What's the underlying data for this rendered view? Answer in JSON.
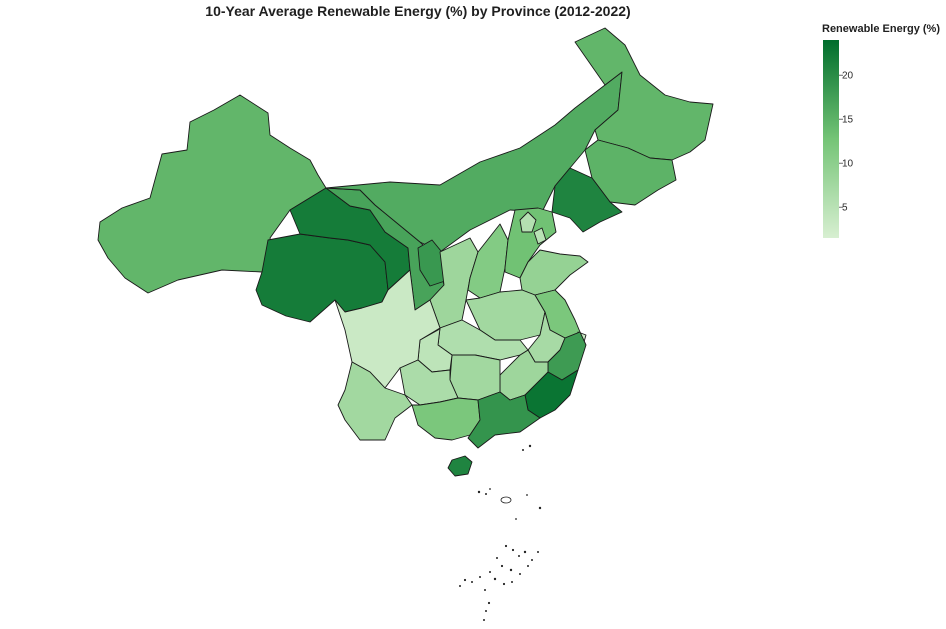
{
  "title": "10-Year Average Renewable Energy (%) by Province (2012-2022)",
  "legend": {
    "title": "Renewable Energy (%)",
    "min": 1.5,
    "max": 24,
    "ticks": [
      5,
      10,
      15,
      20
    ],
    "color_low": "#d7efd1",
    "color_high": "#006d2c"
  },
  "map_data": {
    "type": "choropleth",
    "regions": [
      {
        "name": "Xinjiang",
        "value": 14.5
      },
      {
        "name": "Tibet",
        "value": 22
      },
      {
        "name": "Qinghai",
        "value": 22
      },
      {
        "name": "Gansu",
        "value": 17
      },
      {
        "name": "Inner Mongolia",
        "value": 16
      },
      {
        "name": "Heilongjiang",
        "value": 14.5
      },
      {
        "name": "Jilin",
        "value": 15
      },
      {
        "name": "Liaoning",
        "value": 21
      },
      {
        "name": "Ningxia",
        "value": 18.5
      },
      {
        "name": "Shaanxi",
        "value": 8
      },
      {
        "name": "Shanxi",
        "value": 11
      },
      {
        "name": "Hebei",
        "value": 13
      },
      {
        "name": "Beijing",
        "value": 5.5
      },
      {
        "name": "Tianjin",
        "value": 5
      },
      {
        "name": "Shandong",
        "value": 9
      },
      {
        "name": "Henan",
        "value": 7.5
      },
      {
        "name": "Jiangsu",
        "value": 12
      },
      {
        "name": "Anhui",
        "value": 7
      },
      {
        "name": "Shanghai",
        "value": 3
      },
      {
        "name": "Zhejiang",
        "value": 18
      },
      {
        "name": "Fujian",
        "value": 23
      },
      {
        "name": "Jiangxi",
        "value": 8
      },
      {
        "name": "Hubei",
        "value": 6
      },
      {
        "name": "Hunan",
        "value": 7.5
      },
      {
        "name": "Chongqing",
        "value": 4.5
      },
      {
        "name": "Sichuan",
        "value": 3
      },
      {
        "name": "Guizhou",
        "value": 6.5
      },
      {
        "name": "Yunnan",
        "value": 7.5
      },
      {
        "name": "Guangxi",
        "value": 12
      },
      {
        "name": "Guangdong",
        "value": 19
      },
      {
        "name": "Hainan",
        "value": 21
      }
    ]
  }
}
